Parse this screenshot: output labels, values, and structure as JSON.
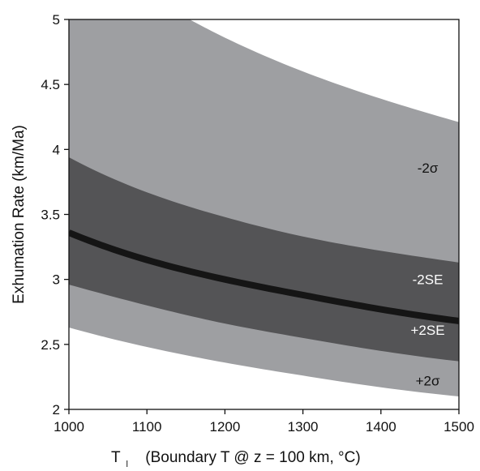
{
  "chart_data": {
    "type": "area",
    "title": "",
    "xlabel": {
      "main": "T",
      "subscript": "l",
      "rest": "(Boundary T @ z = 100 km, °C)"
    },
    "ylabel": "Exhumation Rate (km/Ma)",
    "xlim": [
      1000,
      1500
    ],
    "ylim": [
      2,
      5
    ],
    "x_ticks": [
      "1000",
      "1100",
      "1200",
      "1300",
      "1400",
      "1500"
    ],
    "y_ticks": [
      "2",
      "2.5",
      "3",
      "3.5",
      "4",
      "4.5",
      "5"
    ],
    "grid": false,
    "x": [
      1000,
      1100,
      1200,
      1300,
      1400,
      1500
    ],
    "series": [
      {
        "role": "upper_2sigma",
        "values": [
          5.6,
          5.19,
          4.86,
          4.6,
          4.39,
          4.21
        ]
      },
      {
        "role": "upper_2se",
        "values": [
          3.94,
          3.67,
          3.48,
          3.33,
          3.22,
          3.13
        ]
      },
      {
        "role": "central",
        "values": [
          3.36,
          3.15,
          3.0,
          2.88,
          2.77,
          2.68
        ]
      },
      {
        "role": "lower_2se",
        "values": [
          2.96,
          2.8,
          2.66,
          2.55,
          2.45,
          2.37
        ]
      },
      {
        "role": "lower_2sigma",
        "values": [
          2.63,
          2.48,
          2.36,
          2.26,
          2.17,
          2.1
        ]
      }
    ],
    "band_labels": [
      {
        "text": "-2σ",
        "x": 1460,
        "y": 3.86
      },
      {
        "text": "-2SE",
        "x": 1460,
        "y": 3.0
      },
      {
        "text": "+2SE",
        "x": 1460,
        "y": 2.61
      },
      {
        "text": "+2σ",
        "x": 1460,
        "y": 2.22
      }
    ],
    "colors": {
      "outer_band": "#9e9fa2",
      "inner_band": "#545456",
      "central_line": "#151515",
      "label_dark": "#111111",
      "label_light": "#ffffff"
    }
  }
}
